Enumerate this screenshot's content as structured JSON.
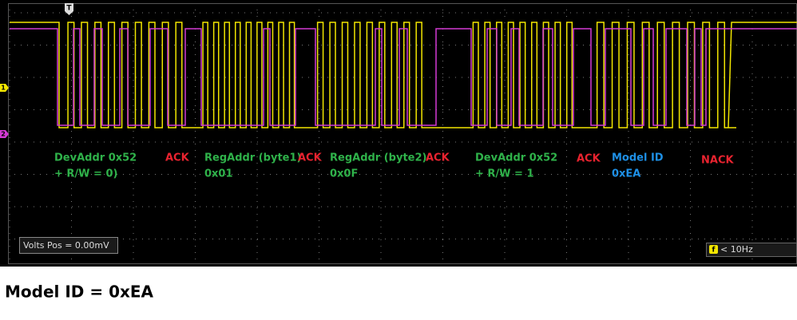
{
  "markers": {
    "trigger": "T",
    "ch1": "1",
    "ch2": "2"
  },
  "annotations": [
    {
      "lines": [
        "DevAddr 0x52",
        "+ R/W = 0)"
      ]
    },
    {
      "lines": [
        "ACK"
      ]
    },
    {
      "lines": [
        "RegAddr (byte1)",
        "0x01"
      ]
    },
    {
      "lines": [
        "ACK"
      ]
    },
    {
      "lines": [
        "RegAddr (byte2)",
        "0x0F"
      ]
    },
    {
      "lines": [
        "ACK"
      ]
    },
    {
      "lines": [
        "DevAddr 0x52",
        "+ R/W = 1"
      ]
    },
    {
      "lines": [
        "ACK"
      ]
    },
    {
      "lines": [
        "Model ID",
        "0xEA"
      ]
    },
    {
      "lines": [
        "NACK"
      ]
    }
  ],
  "status": {
    "volts_pos": "Volts Pos = 0.00mV",
    "trigger_icon": "f",
    "trigger": "< 10Hz"
  },
  "caption": "Model ID = 0xEA"
}
